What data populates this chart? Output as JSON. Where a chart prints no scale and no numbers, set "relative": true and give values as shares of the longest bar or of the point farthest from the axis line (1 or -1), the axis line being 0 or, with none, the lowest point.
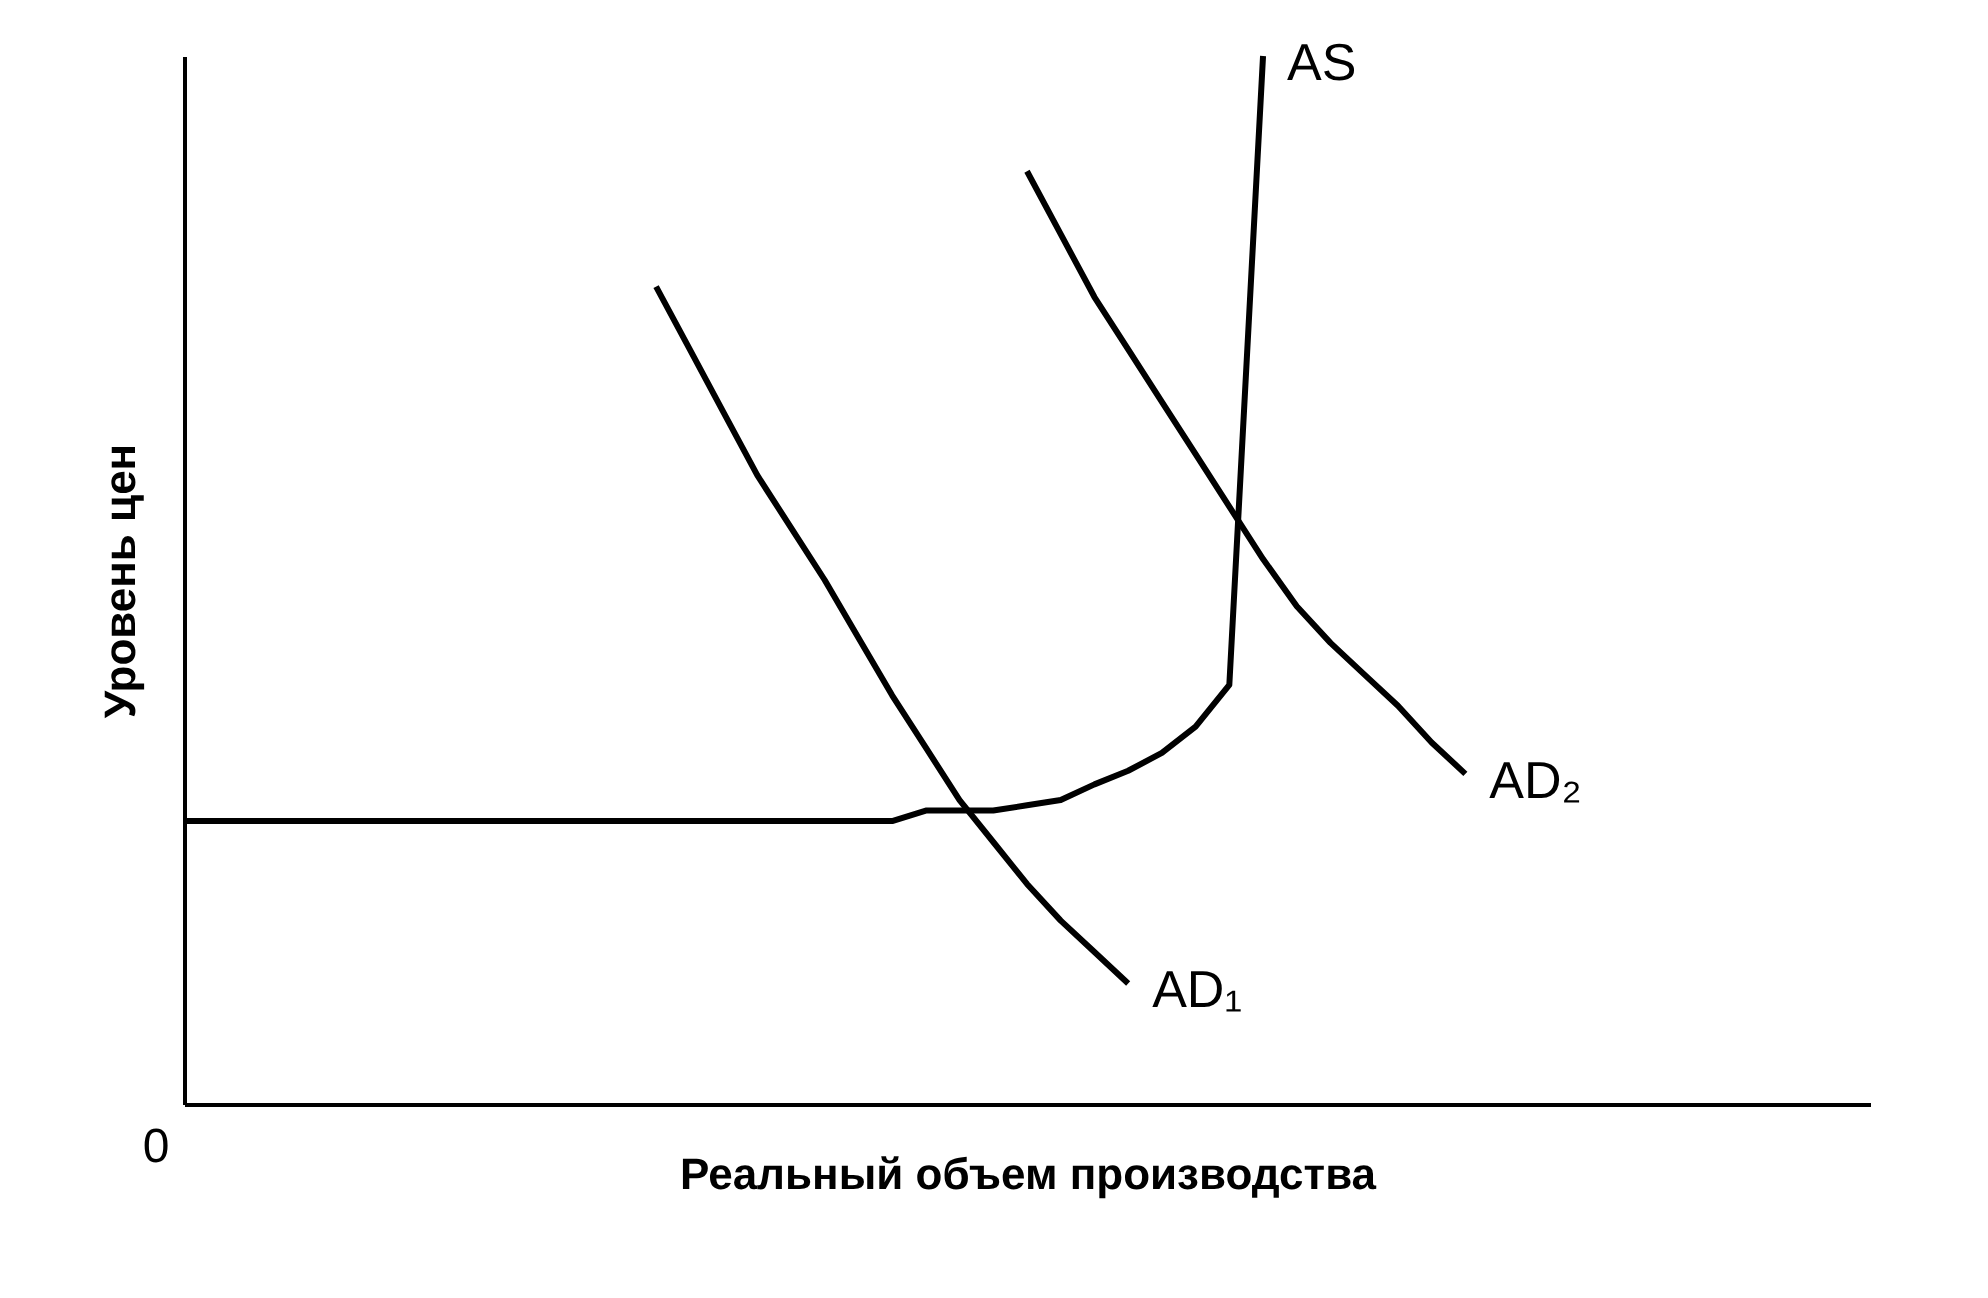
{
  "chart_data": {
    "type": "line",
    "relative": true,
    "xlabel": "Реальный объем производства",
    "ylabel": "Уровень цен",
    "annotations": [
      "0"
    ],
    "grid": false,
    "marker": "none",
    "line_style": "solid",
    "categories": [
      null,
      null,
      null,
      null,
      null,
      null,
      null,
      null,
      null,
      null,
      null,
      null,
      null,
      null,
      null,
      null,
      null,
      null,
      null,
      null,
      null,
      null,
      null,
      null,
      null,
      null,
      null,
      null,
      null,
      null,
      null,
      null,
      null,
      null,
      null,
      null,
      null,
      null,
      null,
      null,
      null,
      null,
      null,
      null,
      null,
      null,
      null,
      null,
      null,
      null,
      null
    ],
    "series": [
      {
        "name": "AS",
        "color": "#000000",
        "values": [
          0.27,
          0.27,
          0.27,
          0.27,
          0.27,
          0.27,
          0.27,
          0.27,
          0.27,
          0.27,
          0.27,
          0.27,
          0.27,
          0.27,
          0.27,
          0.27,
          0.27,
          0.27,
          0.27,
          0.27,
          0.27,
          0.27,
          0.28,
          0.28,
          0.28,
          0.285,
          0.29,
          0.305,
          0.318,
          0.335,
          0.36,
          0.4,
          1.0,
          null,
          null,
          null,
          null,
          null,
          null,
          null,
          null,
          null,
          null,
          null,
          null,
          null,
          null,
          null,
          null,
          null,
          null
        ]
      },
      {
        "name": "AD₁",
        "color": "#000000",
        "values": [
          null,
          null,
          null,
          null,
          null,
          null,
          null,
          null,
          null,
          null,
          null,
          null,
          null,
          null,
          0.78,
          0.72,
          0.66,
          0.6,
          0.55,
          0.5,
          0.445,
          0.39,
          0.34,
          0.29,
          0.25,
          0.21,
          0.175,
          0.145,
          0.115,
          null,
          null,
          null,
          null,
          null,
          null,
          null,
          null,
          null,
          null,
          null,
          null,
          null,
          null,
          null,
          null,
          null,
          null,
          null,
          null,
          null,
          null
        ]
      },
      {
        "name": "AD₂",
        "color": "#000000",
        "values": [
          null,
          null,
          null,
          null,
          null,
          null,
          null,
          null,
          null,
          null,
          null,
          null,
          null,
          null,
          null,
          null,
          null,
          null,
          null,
          null,
          null,
          null,
          null,
          null,
          null,
          0.89,
          0.83,
          0.77,
          0.72,
          0.67,
          0.62,
          0.57,
          0.52,
          0.475,
          0.44,
          0.41,
          0.38,
          0.345,
          0.315,
          null,
          null,
          null,
          null,
          null,
          null,
          null,
          null,
          null,
          null,
          null,
          null
        ]
      }
    ]
  }
}
